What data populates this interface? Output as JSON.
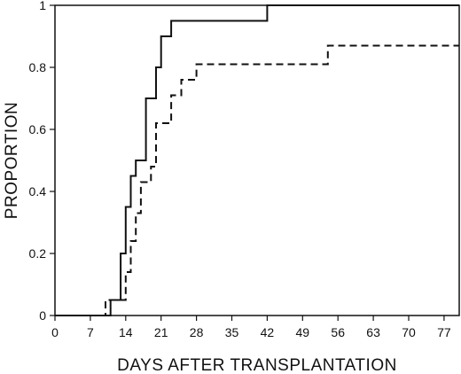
{
  "chart_data": {
    "type": "line",
    "title": "",
    "xlabel": "DAYS AFTER TRANSPLANTATION",
    "ylabel": "PROPORTION",
    "xlim": [
      0,
      80
    ],
    "ylim": [
      0,
      1
    ],
    "xticks": [
      0,
      7,
      14,
      21,
      28,
      35,
      42,
      49,
      56,
      63,
      70,
      77
    ],
    "yticks": [
      0,
      0.2,
      0.4,
      0.6,
      0.8,
      1
    ],
    "ytick_labels": [
      "0",
      "0.2",
      "0.4",
      "0.6",
      "0.8",
      "1"
    ],
    "grid": false,
    "step": true,
    "series": [
      {
        "style": "solid",
        "color": "#111111",
        "points": [
          [
            0,
            0
          ],
          [
            11,
            0
          ],
          [
            11,
            0.05
          ],
          [
            13,
            0.05
          ],
          [
            13,
            0.2
          ],
          [
            14,
            0.2
          ],
          [
            14,
            0.35
          ],
          [
            15,
            0.35
          ],
          [
            15,
            0.45
          ],
          [
            16,
            0.45
          ],
          [
            16,
            0.5
          ],
          [
            18,
            0.5
          ],
          [
            18,
            0.7
          ],
          [
            20,
            0.7
          ],
          [
            20,
            0.8
          ],
          [
            21,
            0.8
          ],
          [
            21,
            0.9
          ],
          [
            23,
            0.9
          ],
          [
            23,
            0.95
          ],
          [
            42,
            0.95
          ],
          [
            42,
            1
          ],
          [
            80,
            1
          ]
        ]
      },
      {
        "style": "dashed",
        "color": "#111111",
        "points": [
          [
            0,
            0
          ],
          [
            10,
            0
          ],
          [
            10,
            0.05
          ],
          [
            14,
            0.05
          ],
          [
            14,
            0.14
          ],
          [
            15,
            0.14
          ],
          [
            15,
            0.24
          ],
          [
            16,
            0.24
          ],
          [
            16,
            0.33
          ],
          [
            17,
            0.33
          ],
          [
            17,
            0.43
          ],
          [
            19,
            0.43
          ],
          [
            19,
            0.48
          ],
          [
            20,
            0.48
          ],
          [
            20,
            0.62
          ],
          [
            23,
            0.62
          ],
          [
            23,
            0.71
          ],
          [
            25,
            0.71
          ],
          [
            25,
            0.76
          ],
          [
            28,
            0.76
          ],
          [
            28,
            0.81
          ],
          [
            54,
            0.81
          ],
          [
            54,
            0.87
          ],
          [
            80,
            0.87
          ]
        ]
      }
    ]
  }
}
